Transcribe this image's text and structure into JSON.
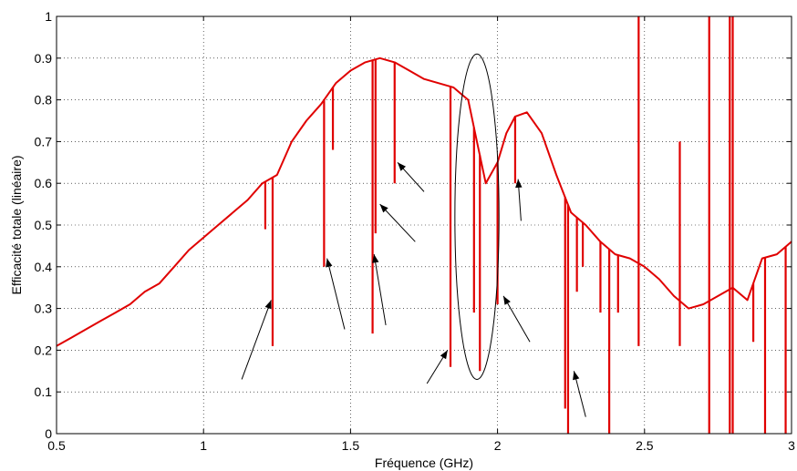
{
  "chart_data": {
    "type": "line",
    "title": "",
    "xlabel": "Fréquence (GHz)",
    "ylabel": "Efficacité totale (linéaire)",
    "xlim": [
      0.5,
      3
    ],
    "ylim": [
      0,
      1
    ],
    "x_ticks": [
      "0.5",
      "1",
      "1.5",
      "2",
      "2.5",
      "3"
    ],
    "y_ticks": [
      "0",
      "0.1",
      "0.2",
      "0.3",
      "0.4",
      "0.5",
      "0.6",
      "0.7",
      "0.8",
      "0.9",
      "1"
    ],
    "grid": true,
    "series": [
      {
        "color": "#e00000",
        "x": [
          0.5,
          0.55,
          0.6,
          0.65,
          0.7,
          0.75,
          0.8,
          0.85,
          0.9,
          0.95,
          1.0,
          1.05,
          1.1,
          1.15,
          1.2,
          1.25,
          1.3,
          1.35,
          1.4,
          1.45,
          1.5,
          1.55,
          1.6,
          1.65,
          1.7,
          1.75,
          1.8,
          1.85,
          1.9,
          1.93,
          1.96,
          2.0,
          2.03,
          2.06,
          2.1,
          2.15,
          2.2,
          2.25,
          2.3,
          2.35,
          2.4,
          2.45,
          2.5,
          2.55,
          2.6,
          2.65,
          2.7,
          2.75,
          2.8,
          2.85,
          2.9,
          2.95,
          3.0
        ],
        "values": [
          0.21,
          0.23,
          0.25,
          0.27,
          0.29,
          0.31,
          0.34,
          0.36,
          0.4,
          0.44,
          0.47,
          0.5,
          0.53,
          0.56,
          0.6,
          0.62,
          0.7,
          0.75,
          0.79,
          0.84,
          0.87,
          0.89,
          0.9,
          0.89,
          0.87,
          0.85,
          0.84,
          0.83,
          0.8,
          0.7,
          0.6,
          0.65,
          0.72,
          0.76,
          0.77,
          0.72,
          0.62,
          0.53,
          0.5,
          0.46,
          0.43,
          0.42,
          0.4,
          0.37,
          0.33,
          0.3,
          0.31,
          0.33,
          0.35,
          0.32,
          0.42,
          0.43,
          0.46
        ]
      }
    ],
    "spikes": [
      {
        "x": 1.21,
        "to": 0.49
      },
      {
        "x": 1.235,
        "to": 0.21
      },
      {
        "x": 1.41,
        "to": 0.4
      },
      {
        "x": 1.44,
        "to": 0.68
      },
      {
        "x": 1.575,
        "to": 0.24
      },
      {
        "x": 1.585,
        "to": 0.48
      },
      {
        "x": 1.65,
        "to": 0.6
      },
      {
        "x": 1.84,
        "to": 0.16
      },
      {
        "x": 1.92,
        "to": 0.29
      },
      {
        "x": 1.94,
        "to": 0.15
      },
      {
        "x": 2.0,
        "to": 0.31
      },
      {
        "x": 2.06,
        "to": 0.6
      },
      {
        "x": 2.23,
        "to": 0.06
      },
      {
        "x": 2.24,
        "to": 0.0
      },
      {
        "x": 2.27,
        "to": 0.34
      },
      {
        "x": 2.29,
        "to": 0.4
      },
      {
        "x": 2.35,
        "to": 0.29
      },
      {
        "x": 2.38,
        "to": 0.0
      },
      {
        "x": 2.41,
        "to": 0.29
      },
      {
        "x": 2.48,
        "to": 1.0
      },
      {
        "x": 2.48,
        "to": 0.21
      },
      {
        "x": 2.62,
        "to": 0.7
      },
      {
        "x": 2.62,
        "to": 0.21
      },
      {
        "x": 2.72,
        "to": 1.0
      },
      {
        "x": 2.72,
        "to": 0.0
      },
      {
        "x": 2.79,
        "to": 1.0
      },
      {
        "x": 2.79,
        "to": 0.0
      },
      {
        "x": 2.8,
        "to": 1.0
      },
      {
        "x": 2.8,
        "to": 0.0
      },
      {
        "x": 2.87,
        "to": 0.22
      },
      {
        "x": 2.91,
        "to": 0.0
      },
      {
        "x": 2.98,
        "to": 0.0
      }
    ],
    "annotations": {
      "ellipse": {
        "cx": 1.93,
        "cy": 0.52,
        "rx": 0.075,
        "ry": 0.39,
        "color": "#000000"
      },
      "arrows": [
        {
          "from": [
            1.13,
            0.13
          ],
          "to": [
            1.23,
            0.32
          ]
        },
        {
          "from": [
            1.48,
            0.25
          ],
          "to": [
            1.42,
            0.42
          ]
        },
        {
          "from": [
            1.62,
            0.26
          ],
          "to": [
            1.58,
            0.43
          ]
        },
        {
          "from": [
            1.72,
            0.46
          ],
          "to": [
            1.6,
            0.55
          ]
        },
        {
          "from": [
            1.75,
            0.58
          ],
          "to": [
            1.66,
            0.65
          ]
        },
        {
          "from": [
            1.76,
            0.12
          ],
          "to": [
            1.83,
            0.2
          ]
        },
        {
          "from": [
            2.11,
            0.22
          ],
          "to": [
            2.02,
            0.33
          ]
        },
        {
          "from": [
            2.08,
            0.51
          ],
          "to": [
            2.07,
            0.61
          ]
        },
        {
          "from": [
            2.3,
            0.04
          ],
          "to": [
            2.26,
            0.15
          ]
        }
      ]
    }
  }
}
